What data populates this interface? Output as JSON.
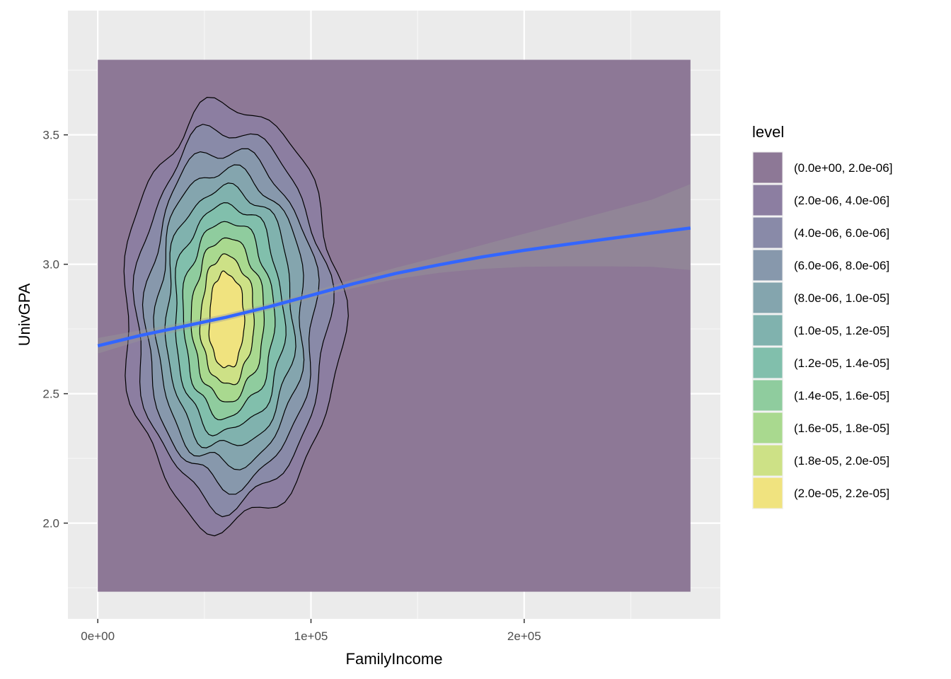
{
  "chart_data": {
    "type": "density-contour-with-smooth-line",
    "xlabel": "FamilyIncome",
    "ylabel": "UnivGPA",
    "xlim": [
      -14000,
      292000
    ],
    "ylim": [
      1.63,
      3.98
    ],
    "x_ticks": [
      {
        "value": 0,
        "label": "0e+00"
      },
      {
        "value": 100000,
        "label": "1e+05"
      },
      {
        "value": 200000,
        "label": "2e+05"
      }
    ],
    "x_minor_ticks": [
      50000,
      150000,
      250000
    ],
    "y_ticks": [
      {
        "value": 2.0,
        "label": "2.0"
      },
      {
        "value": 2.5,
        "label": "2.5"
      },
      {
        "value": 3.0,
        "label": "3.0"
      },
      {
        "value": 3.5,
        "label": "3.5"
      }
    ],
    "y_minor_ticks": [
      1.75,
      2.25,
      2.75,
      3.25,
      3.75
    ],
    "grid": true,
    "density_extent": {
      "x": [
        0,
        278000
      ],
      "y": [
        1.735,
        3.79
      ]
    },
    "density_center": {
      "x": 60000,
      "y": 2.8
    },
    "legend": {
      "title": "level",
      "position": "right",
      "entries": [
        {
          "label": "(0.0e+00, 2.0e-06]",
          "color": "#8d7896"
        },
        {
          "label": "(2.0e-06, 4.0e-06]",
          "color": "#8c7ea1"
        },
        {
          "label": "(4.0e-06, 6.0e-06]",
          "color": "#898aa8"
        },
        {
          "label": "(6.0e-06, 8.0e-06]",
          "color": "#8798ac"
        },
        {
          "label": "(8.0e-06, 1.0e-05]",
          "color": "#84a5ae"
        },
        {
          "label": "(1.0e-05, 1.2e-05]",
          "color": "#80b2ae"
        },
        {
          "label": "(1.2e-05, 1.4e-05]",
          "color": "#81bfac"
        },
        {
          "label": "(1.4e-05, 1.6e-05]",
          "color": "#8fcc9e"
        },
        {
          "label": "(1.6e-05, 1.8e-05]",
          "color": "#a9d98f"
        },
        {
          "label": "(1.8e-05, 2.0e-05]",
          "color": "#cde186"
        },
        {
          "label": "(2.0e-05, 2.2e-05]",
          "color": "#f0e37f"
        }
      ]
    },
    "smooth_line": {
      "color": "#3366ff",
      "x": [
        0,
        20000,
        40000,
        60000,
        80000,
        100000,
        120000,
        140000,
        160000,
        180000,
        200000,
        220000,
        240000,
        260000,
        278000
      ],
      "y": [
        2.685,
        2.725,
        2.76,
        2.795,
        2.835,
        2.88,
        2.925,
        2.965,
        2.998,
        3.028,
        3.054,
        3.077,
        3.099,
        3.121,
        3.14
      ],
      "ci_lower": [
        2.655,
        2.705,
        2.745,
        2.782,
        2.822,
        2.866,
        2.908,
        2.943,
        2.967,
        2.982,
        2.99,
        2.992,
        2.992,
        2.99,
        2.978
      ],
      "ci_upper": [
        2.715,
        2.745,
        2.775,
        2.808,
        2.848,
        2.894,
        2.942,
        2.987,
        3.029,
        3.074,
        3.118,
        3.162,
        3.206,
        3.25,
        3.31
      ]
    }
  }
}
